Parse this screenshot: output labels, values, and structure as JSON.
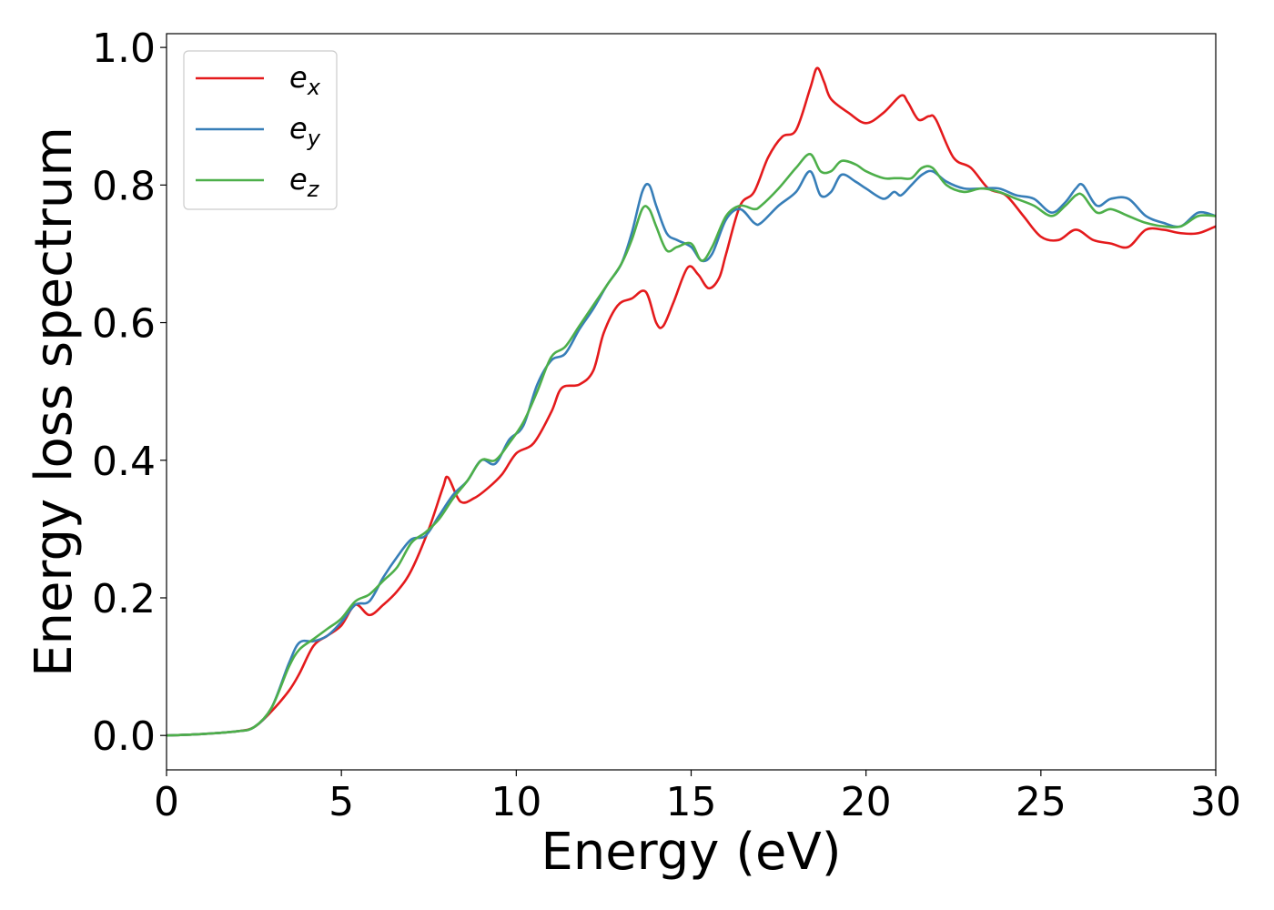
{
  "chart_data": {
    "type": "line",
    "xlabel": "Energy (eV)",
    "ylabel": "Energy loss spectrum",
    "xlim": [
      0,
      30
    ],
    "ylim": [
      -0.05,
      1.02
    ],
    "xticks": [
      0,
      5,
      10,
      15,
      20,
      25,
      30
    ],
    "xtick_labels": [
      "0",
      "5",
      "10",
      "15",
      "20",
      "25",
      "30"
    ],
    "yticks": [
      0.0,
      0.2,
      0.4,
      0.6,
      0.8,
      1.0
    ],
    "ytick_labels": [
      "0.0",
      "0.2",
      "0.4",
      "0.6",
      "0.8",
      "1.0"
    ],
    "grid": false,
    "legend_position": "top-left",
    "series": [
      {
        "name": "e_x",
        "label_base": "e",
        "label_sub": "x",
        "color": "#e41a1c",
        "x": [
          0,
          1,
          2,
          2.5,
          3,
          3.5,
          3.8,
          4.2,
          4.6,
          5.0,
          5.4,
          5.8,
          6.2,
          6.6,
          7.0,
          7.5,
          7.9,
          8.05,
          8.4,
          8.8,
          9.2,
          9.6,
          10.0,
          10.5,
          11.0,
          11.3,
          11.8,
          12.2,
          12.5,
          12.9,
          13.3,
          13.7,
          14.0,
          14.2,
          14.5,
          14.9,
          15.2,
          15.5,
          15.8,
          16.0,
          16.4,
          16.8,
          17.2,
          17.6,
          18.0,
          18.4,
          18.6,
          18.8,
          19.0,
          19.5,
          20.0,
          20.5,
          21.0,
          21.2,
          21.5,
          21.8,
          22.0,
          22.5,
          23.0,
          23.5,
          24.0,
          24.5,
          25.0,
          25.5,
          26.0,
          26.5,
          27.0,
          27.5,
          28.0,
          28.5,
          29.0,
          29.5,
          30.0
        ],
        "y": [
          0.0,
          0.002,
          0.006,
          0.012,
          0.035,
          0.065,
          0.09,
          0.13,
          0.145,
          0.16,
          0.19,
          0.175,
          0.19,
          0.21,
          0.24,
          0.3,
          0.36,
          0.375,
          0.34,
          0.345,
          0.36,
          0.38,
          0.41,
          0.425,
          0.47,
          0.505,
          0.51,
          0.53,
          0.585,
          0.625,
          0.635,
          0.645,
          0.6,
          0.595,
          0.63,
          0.68,
          0.67,
          0.65,
          0.665,
          0.7,
          0.77,
          0.79,
          0.84,
          0.87,
          0.88,
          0.94,
          0.97,
          0.95,
          0.925,
          0.905,
          0.89,
          0.905,
          0.93,
          0.92,
          0.895,
          0.9,
          0.895,
          0.84,
          0.825,
          0.795,
          0.785,
          0.755,
          0.725,
          0.72,
          0.735,
          0.72,
          0.715,
          0.71,
          0.735,
          0.735,
          0.73,
          0.73,
          0.74
        ]
      },
      {
        "name": "e_y",
        "label_base": "e",
        "label_sub": "y",
        "color": "#377eb8",
        "x": [
          0,
          1,
          2,
          2.5,
          3,
          3.5,
          3.8,
          4.2,
          4.6,
          5.0,
          5.4,
          5.8,
          6.2,
          6.6,
          7.0,
          7.4,
          7.8,
          8.2,
          8.6,
          9.0,
          9.4,
          9.8,
          10.2,
          10.6,
          11.0,
          11.4,
          11.8,
          12.2,
          12.6,
          13.0,
          13.3,
          13.6,
          13.8,
          14.0,
          14.3,
          14.6,
          15.0,
          15.3,
          15.6,
          16.0,
          16.4,
          16.8,
          17.0,
          17.5,
          18.0,
          18.4,
          18.7,
          19.0,
          19.3,
          19.7,
          20.0,
          20.5,
          20.8,
          21.0,
          21.3,
          21.6,
          21.9,
          22.3,
          22.8,
          23.3,
          23.8,
          24.3,
          24.8,
          25.3,
          25.7,
          26.0,
          26.2,
          26.6,
          27.0,
          27.5,
          28.0,
          28.5,
          29.0,
          29.5,
          30.0
        ],
        "y": [
          0.0,
          0.002,
          0.006,
          0.012,
          0.04,
          0.105,
          0.135,
          0.137,
          0.145,
          0.165,
          0.19,
          0.195,
          0.23,
          0.26,
          0.285,
          0.29,
          0.32,
          0.35,
          0.37,
          0.4,
          0.395,
          0.43,
          0.45,
          0.51,
          0.545,
          0.555,
          0.59,
          0.62,
          0.655,
          0.685,
          0.73,
          0.79,
          0.8,
          0.77,
          0.73,
          0.72,
          0.71,
          0.69,
          0.7,
          0.75,
          0.765,
          0.745,
          0.745,
          0.77,
          0.79,
          0.82,
          0.785,
          0.79,
          0.815,
          0.805,
          0.795,
          0.78,
          0.79,
          0.785,
          0.8,
          0.815,
          0.82,
          0.805,
          0.795,
          0.795,
          0.795,
          0.785,
          0.78,
          0.76,
          0.775,
          0.795,
          0.8,
          0.77,
          0.78,
          0.78,
          0.755,
          0.745,
          0.74,
          0.76,
          0.755
        ]
      },
      {
        "name": "e_z",
        "label_base": "e",
        "label_sub": "z",
        "color": "#4daf4a",
        "x": [
          0,
          1,
          2,
          2.5,
          3,
          3.5,
          3.8,
          4.2,
          4.6,
          5.0,
          5.4,
          5.8,
          6.2,
          6.6,
          7.0,
          7.4,
          7.8,
          8.2,
          8.6,
          9.0,
          9.4,
          9.8,
          10.2,
          10.6,
          11.0,
          11.4,
          11.8,
          12.2,
          12.6,
          13.0,
          13.3,
          13.6,
          13.8,
          14.0,
          14.3,
          14.6,
          15.0,
          15.3,
          15.6,
          16.0,
          16.4,
          16.8,
          17.0,
          17.5,
          18.0,
          18.4,
          18.7,
          19.0,
          19.3,
          19.7,
          20.0,
          20.5,
          20.8,
          21.0,
          21.3,
          21.6,
          21.9,
          22.3,
          22.8,
          23.3,
          23.8,
          24.3,
          24.8,
          25.3,
          25.7,
          26.0,
          26.2,
          26.6,
          27.0,
          27.5,
          28.0,
          28.5,
          29.0,
          29.5,
          30.0
        ],
        "y": [
          0.0,
          0.002,
          0.006,
          0.012,
          0.04,
          0.1,
          0.125,
          0.14,
          0.155,
          0.17,
          0.195,
          0.205,
          0.225,
          0.245,
          0.28,
          0.295,
          0.315,
          0.345,
          0.37,
          0.4,
          0.4,
          0.425,
          0.455,
          0.5,
          0.55,
          0.565,
          0.595,
          0.625,
          0.655,
          0.685,
          0.72,
          0.765,
          0.765,
          0.74,
          0.705,
          0.71,
          0.715,
          0.69,
          0.71,
          0.755,
          0.77,
          0.765,
          0.77,
          0.795,
          0.825,
          0.845,
          0.82,
          0.82,
          0.835,
          0.83,
          0.82,
          0.81,
          0.81,
          0.81,
          0.81,
          0.825,
          0.825,
          0.8,
          0.79,
          0.795,
          0.79,
          0.78,
          0.77,
          0.755,
          0.77,
          0.785,
          0.785,
          0.76,
          0.765,
          0.755,
          0.745,
          0.74,
          0.74,
          0.755,
          0.755
        ]
      }
    ]
  }
}
